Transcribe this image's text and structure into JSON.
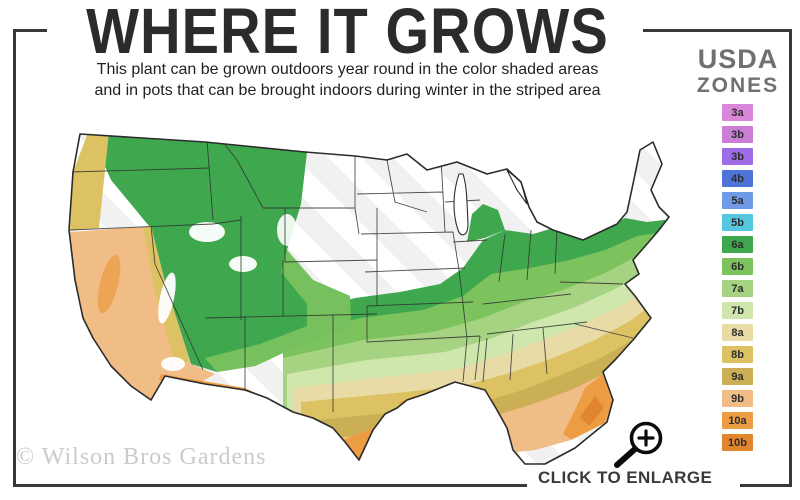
{
  "header": {
    "title": "WHERE IT GROWS",
    "subtitle_line1": "This plant can be grown outdoors year round in the color shaded areas",
    "subtitle_line2": "and in pots that can be brought indoors during winter in the striped area"
  },
  "legend": {
    "title_line1": "USDA",
    "title_line2": "ZONES",
    "zones": [
      {
        "label": "3a",
        "color": "#da86da"
      },
      {
        "label": "3b",
        "color": "#cc7ed4"
      },
      {
        "label": "3b",
        "color": "#9e6ce4"
      },
      {
        "label": "4b",
        "color": "#4f74d8"
      },
      {
        "label": "5a",
        "color": "#6e9ae8"
      },
      {
        "label": "5b",
        "color": "#55c8e0"
      },
      {
        "label": "6a",
        "color": "#3fa84f"
      },
      {
        "label": "6b",
        "color": "#7cc35e"
      },
      {
        "label": "7a",
        "color": "#a5d381"
      },
      {
        "label": "7b",
        "color": "#cfe6ad"
      },
      {
        "label": "8a",
        "color": "#e8dba6"
      },
      {
        "label": "8b",
        "color": "#dcc263"
      },
      {
        "label": "9a",
        "color": "#cbaf54"
      },
      {
        "label": "9b",
        "color": "#f0bd87"
      },
      {
        "label": "10a",
        "color": "#ec9c43"
      },
      {
        "label": "10b",
        "color": "#e2862e"
      }
    ]
  },
  "chart_data": {
    "type": "heatmap",
    "title": "WHERE IT GROWS",
    "legend_title": "USDA ZONES",
    "legend_position": "right",
    "categories": [
      "3a",
      "3b",
      "3b",
      "4b",
      "5a",
      "5b",
      "6a",
      "6b",
      "7a",
      "7b",
      "8a",
      "8b",
      "9a",
      "9b",
      "10a",
      "10b"
    ],
    "notes": "USA map; northern states unshaded/striped, green zones 6a-7b across middle latitudes and Appalachians into New England coast, tan/gold zones 8a-9a across the South, peach/orange 9b-10b along Gulf coast, south Texas, Florida and California; south Florida tip striped"
  },
  "footer": {
    "watermark": "© Wilson Bros Gardens",
    "enlarge_label": "CLICK TO ENLARGE",
    "enlarge_icon": "magnifier-plus-icon"
  },
  "colors": {
    "frame": "#383838",
    "title_text": "#2b2b2b",
    "legend_title_text": "#707070",
    "watermark_text": "#cbcbcb",
    "stripe": "#f1f1f1"
  }
}
